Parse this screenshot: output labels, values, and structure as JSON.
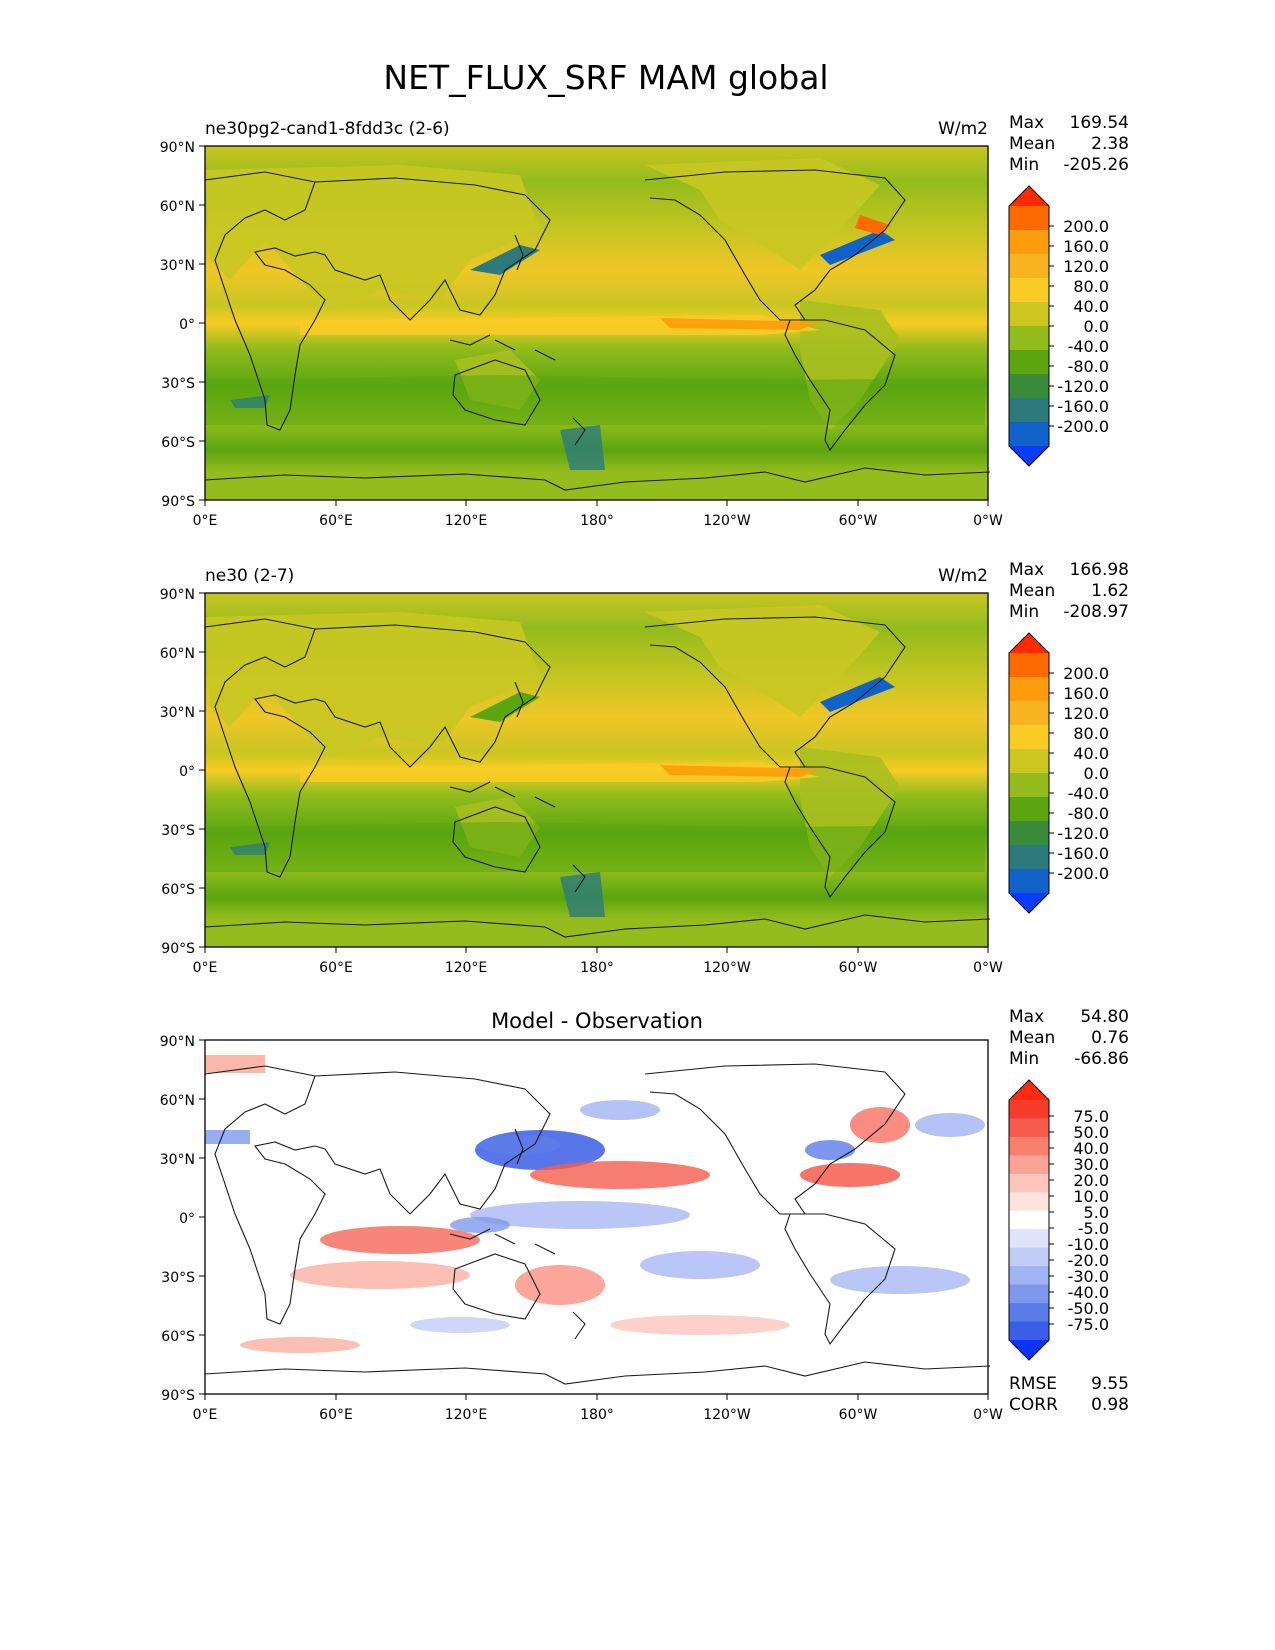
{
  "title": "NET_FLUX_SRF MAM global",
  "lat_ticks": [
    "90°N",
    "60°N",
    "30°N",
    "0°",
    "30°S",
    "60°S",
    "90°S"
  ],
  "lon_ticks": [
    "0°E",
    "60°E",
    "120°E",
    "180°",
    "120°W",
    "60°W",
    "0°W"
  ],
  "panels": [
    {
      "left_title": "ne30pg2-cand1-8fdd3c (2-6)",
      "center_title": "",
      "units": "W/m2",
      "stats": {
        "max_label": "Max",
        "max": "169.54",
        "mean_label": "Mean",
        "mean": "2.38",
        "min_label": "Min",
        "min": "-205.26"
      },
      "colorbar": {
        "labels": [
          "200.0",
          "160.0",
          "120.0",
          "80.0",
          "40.0",
          "0.0",
          "-40.0",
          "-80.0",
          "-120.0",
          "-160.0",
          "-200.0"
        ],
        "colors": [
          "#ff2a00",
          "#ff6a00",
          "#fd9c0c",
          "#f7b320",
          "#f8cc24",
          "#cbc620",
          "#93bc1c",
          "#5aa510",
          "#3a8c3a",
          "#2d7a7c",
          "#1062c8",
          "#0a3cff"
        ]
      }
    },
    {
      "left_title": "ne30 (2-7)",
      "center_title": "",
      "units": "W/m2",
      "stats": {
        "max_label": "Max",
        "max": "166.98",
        "mean_label": "Mean",
        "mean": "1.62",
        "min_label": "Min",
        "min": "-208.97"
      },
      "colorbar": {
        "labels": [
          "200.0",
          "160.0",
          "120.0",
          "80.0",
          "40.0",
          "0.0",
          "-40.0",
          "-80.0",
          "-120.0",
          "-160.0",
          "-200.0"
        ],
        "colors": [
          "#ff2a00",
          "#ff6a00",
          "#fd9c0c",
          "#f7b320",
          "#f8cc24",
          "#cbc620",
          "#93bc1c",
          "#5aa510",
          "#3a8c3a",
          "#2d7a7c",
          "#1062c8",
          "#0a3cff"
        ]
      }
    },
    {
      "left_title": "",
      "center_title": "Model - Observation",
      "units": "",
      "stats": {
        "max_label": "Max",
        "max": "54.80",
        "mean_label": "Mean",
        "mean": "0.76",
        "min_label": "Min",
        "min": "-66.86"
      },
      "extra": {
        "rmse_label": "RMSE",
        "rmse": "9.55",
        "corr_label": "CORR",
        "corr": "0.98"
      },
      "colorbar": {
        "labels": [
          "75.0",
          "50.0",
          "40.0",
          "30.0",
          "20.0",
          "10.0",
          "5.0",
          "-5.0",
          "-10.0",
          "-20.0",
          "-30.0",
          "-40.0",
          "-50.0",
          "-75.0"
        ],
        "colors": [
          "#ff2a10",
          "#f53d2d",
          "#f65c4d",
          "#f8806f",
          "#fba495",
          "#fdc6bc",
          "#fde3de",
          "#ffffff",
          "#dfe4fb",
          "#c2cdf7",
          "#a1b3f3",
          "#7f98ee",
          "#5c7cea",
          "#3b5ee6",
          "#0a33ff"
        ]
      }
    }
  ]
}
